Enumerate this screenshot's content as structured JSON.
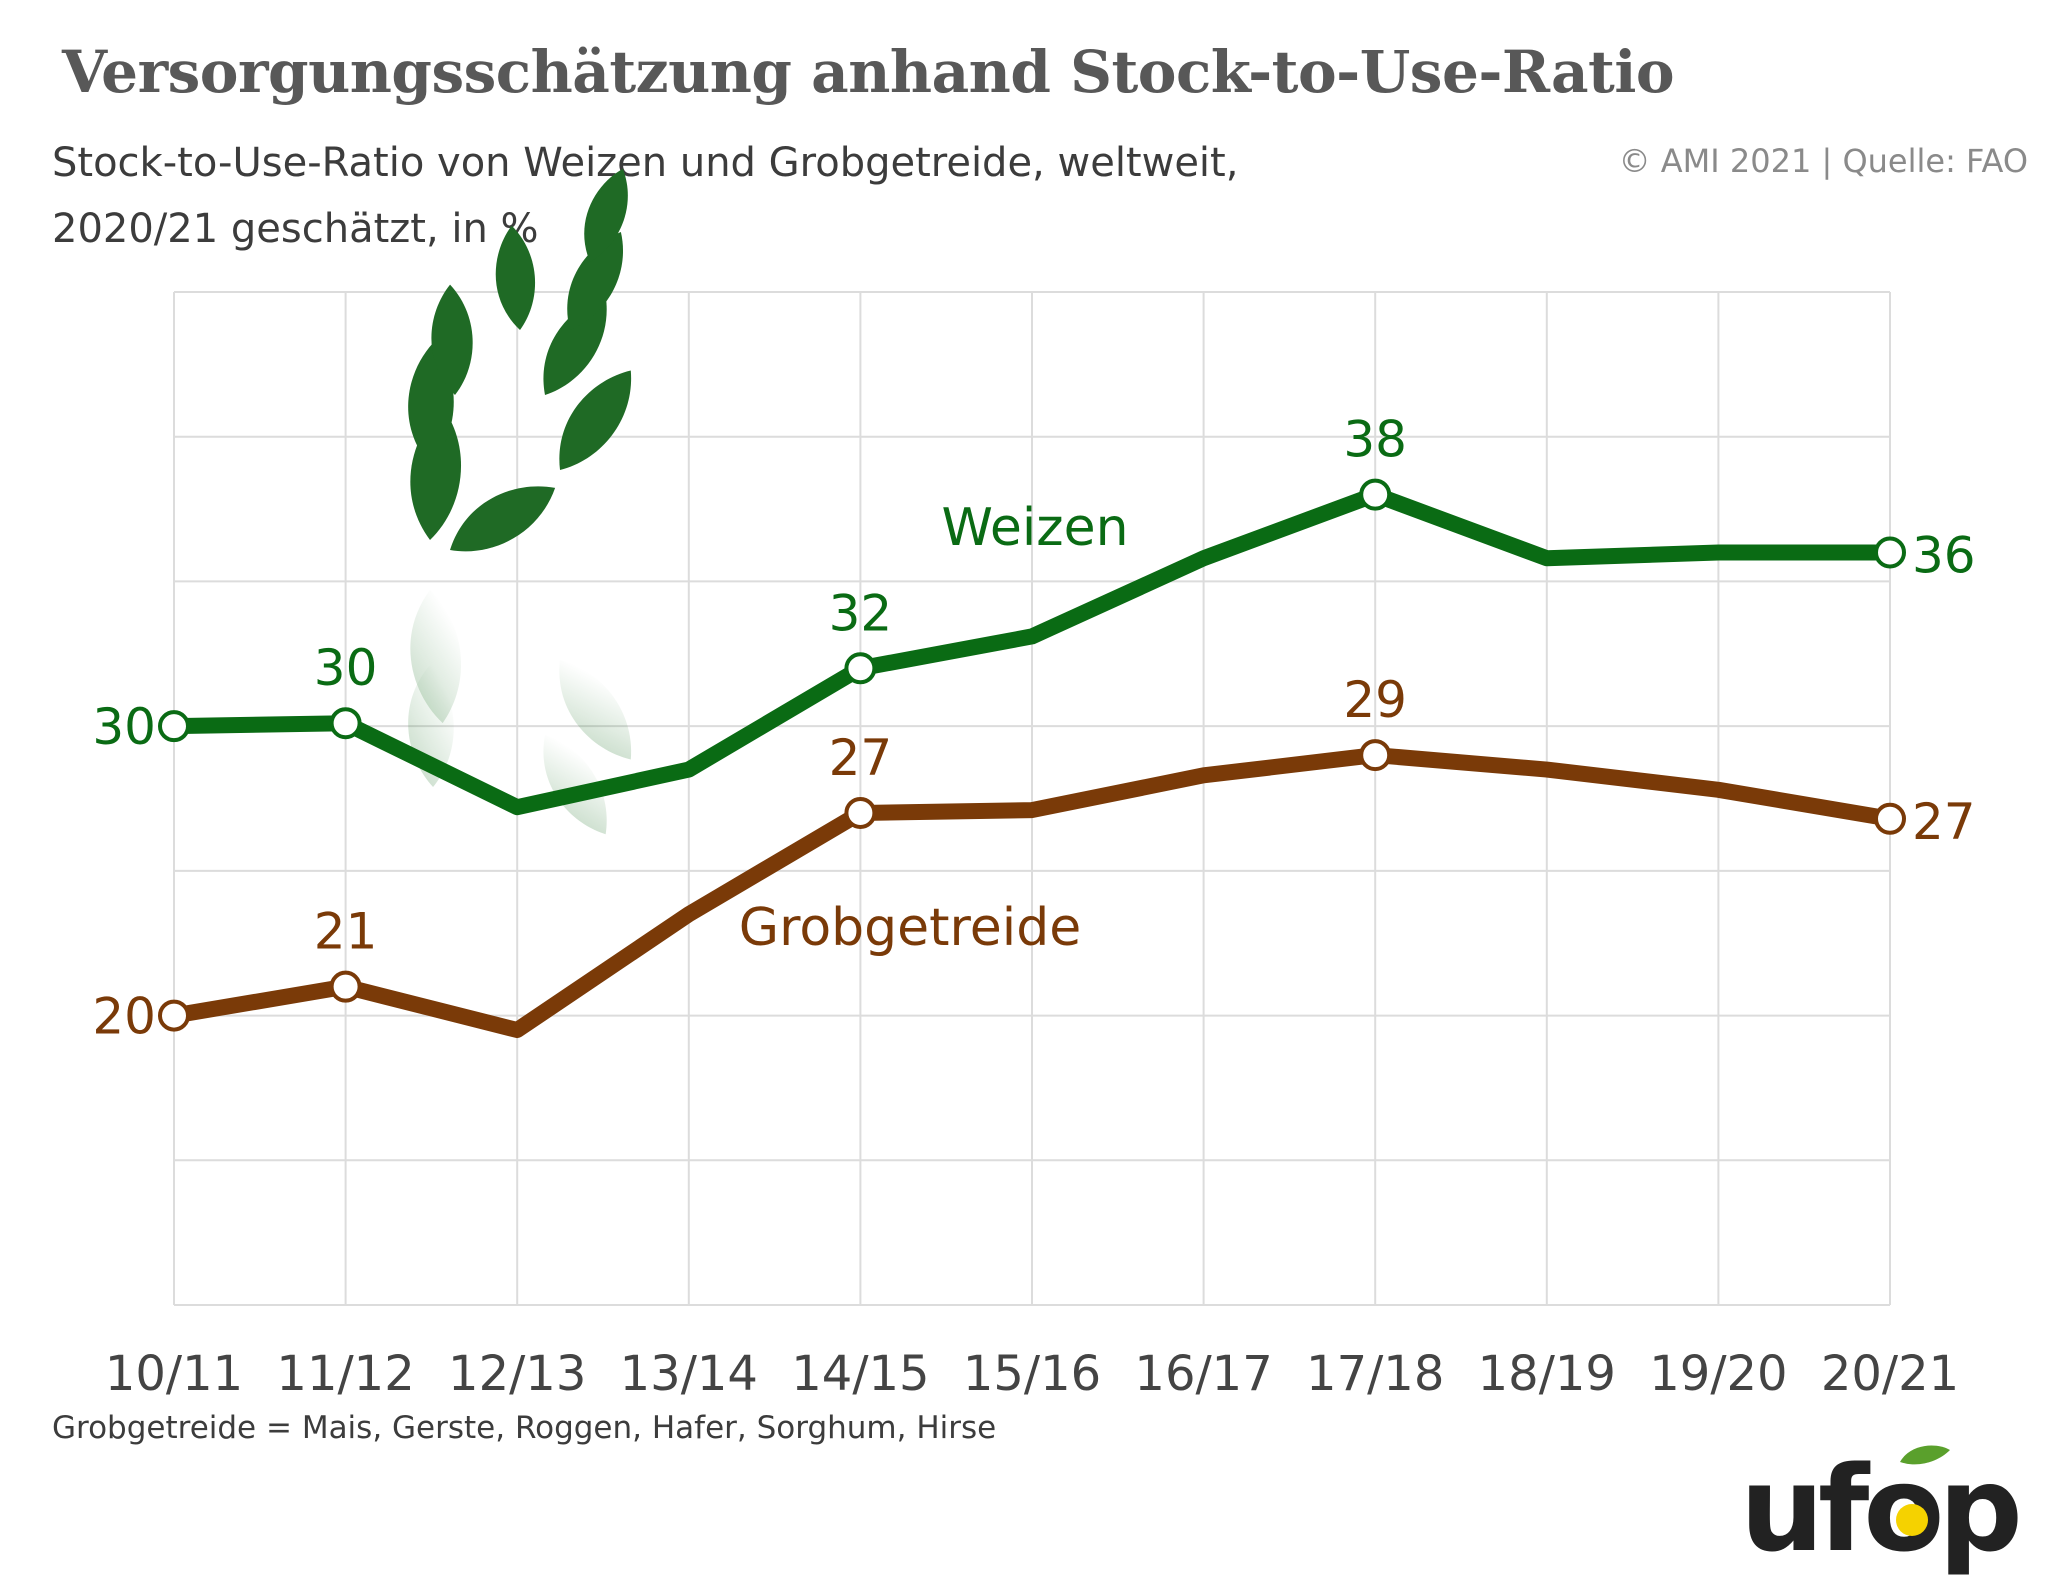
{
  "title": "Versorgungsschätzung anhand Stock-to-Use-Ratio",
  "subtitle": "Stock-to-Use-Ratio von Weizen und Grobgetreide, weltweit, 2020/21 geschätzt, in %",
  "source": "© AMI 2021 | Quelle: FAO",
  "footnote": "Grobgetreide = Mais, Gerste, Roggen, Hafer, Sorghum, Hirse",
  "logo_text": "ufop",
  "colors": {
    "wheat": "#0a6b14",
    "coarse": "#7a3a08",
    "grid": "#dcdcdc",
    "axis_text": "#444444"
  },
  "chart_data": {
    "type": "line",
    "categories": [
      "10/11",
      "11/12",
      "12/13",
      "13/14",
      "14/15",
      "15/16",
      "16/17",
      "17/18",
      "18/19",
      "19/20",
      "20/21"
    ],
    "ylim": [
      10,
      45
    ],
    "grid": true,
    "series": [
      {
        "name": "Weizen",
        "color": "#0a6b14",
        "values": [
          30,
          30.1,
          27.2,
          28.5,
          32,
          33.1,
          35.8,
          38,
          35.8,
          36,
          36
        ],
        "labels": [
          {
            "index": 0,
            "text": "30"
          },
          {
            "index": 1,
            "text": "30"
          },
          {
            "index": 4,
            "text": "32"
          },
          {
            "index": 7,
            "text": "38"
          },
          {
            "index": 10,
            "text": "36"
          }
        ]
      },
      {
        "name": "Grobgetreide",
        "color": "#7a3a08",
        "values": [
          20,
          21,
          19.5,
          23.5,
          27,
          27.1,
          28.3,
          29,
          28.5,
          27.8,
          26.8
        ],
        "labels": [
          {
            "index": 0,
            "text": "20"
          },
          {
            "index": 1,
            "text": "21"
          },
          {
            "index": 4,
            "text": "27"
          },
          {
            "index": 7,
            "text": "29"
          },
          {
            "index": 10,
            "text": "27"
          }
        ]
      }
    ]
  }
}
